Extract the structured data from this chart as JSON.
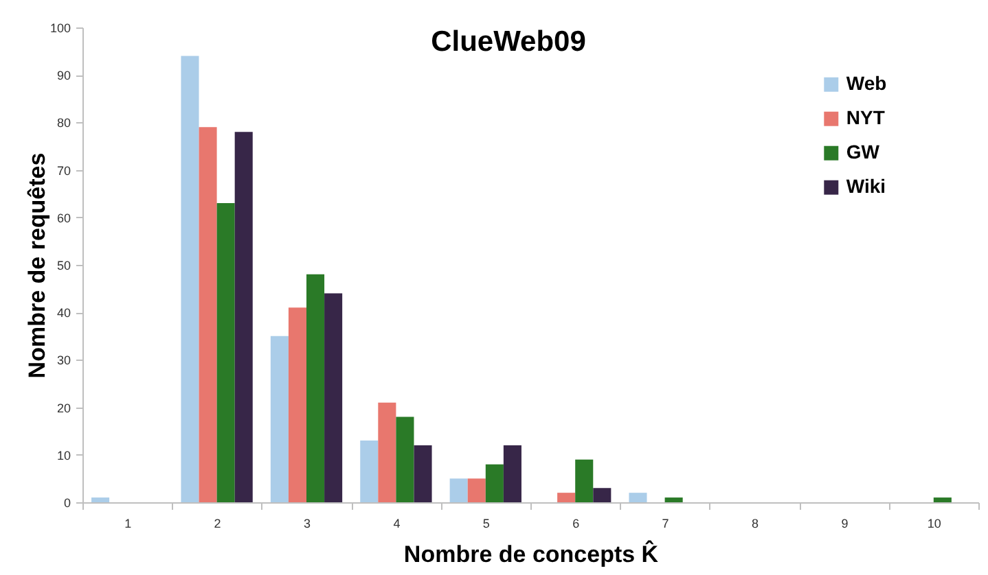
{
  "chart_data": {
    "type": "bar",
    "title": "ClueWeb09",
    "xlabel": "Nombre de concepts K̂",
    "ylabel": "Nombre de requêtes",
    "categories": [
      "1",
      "2",
      "3",
      "4",
      "5",
      "6",
      "7",
      "8",
      "9",
      "10"
    ],
    "ylim": [
      0,
      100
    ],
    "yticks": [
      0,
      10,
      20,
      30,
      40,
      50,
      60,
      70,
      80,
      90,
      100
    ],
    "grid": false,
    "legend": "top right",
    "series": [
      {
        "name": "Web",
        "color": "#abcde9",
        "values": [
          1,
          94,
          35,
          13,
          5,
          0,
          2,
          0,
          0,
          0
        ]
      },
      {
        "name": "NYT",
        "color": "#e8776e",
        "values": [
          0,
          79,
          41,
          21,
          5,
          2,
          0,
          0,
          0,
          0
        ]
      },
      {
        "name": "GW",
        "color": "#2a7a27",
        "values": [
          0,
          63,
          48,
          18,
          8,
          9,
          1,
          0,
          0,
          1
        ]
      },
      {
        "name": "Wiki",
        "color": "#372648",
        "values": [
          0,
          78,
          44,
          12,
          12,
          3,
          0,
          0,
          0,
          0
        ]
      }
    ]
  }
}
